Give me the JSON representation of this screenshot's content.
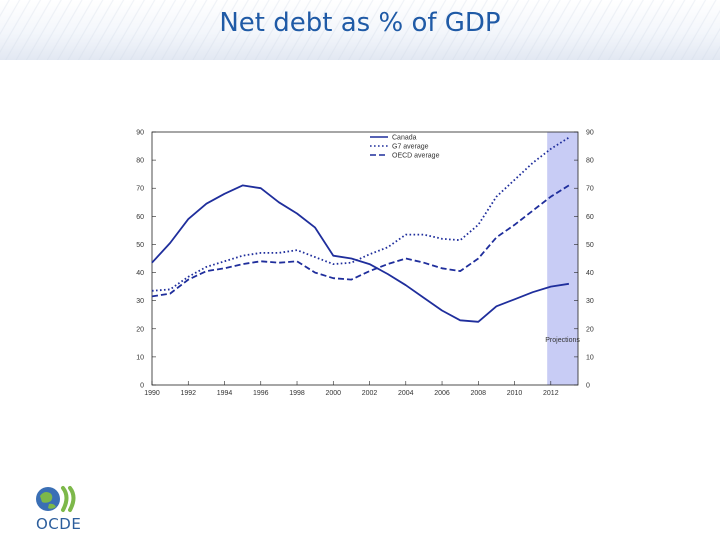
{
  "slide": {
    "title": "Net debt as % of GDP"
  },
  "logo": {
    "text": "OCDE"
  },
  "colors": {
    "line": "#1f2e9c",
    "shade": "#c8ccf5",
    "title": "#1f5aa6"
  },
  "chart_data": {
    "type": "line",
    "title": "Net debt as % of GDP",
    "xlabel": "",
    "ylabel": "",
    "xlim": [
      1990,
      2013.5
    ],
    "ylim": [
      0,
      90
    ],
    "xticks": [
      1990,
      1992,
      1994,
      1996,
      1998,
      2000,
      2002,
      2004,
      2006,
      2008,
      2010,
      2012
    ],
    "yticks": [
      0,
      10,
      20,
      30,
      40,
      50,
      60,
      70,
      80,
      90
    ],
    "projection": {
      "from": 2011.8,
      "to": 2013.5,
      "label": "Projections"
    },
    "legend_position": "top-center",
    "series": [
      {
        "name": "Canada",
        "style": "solid",
        "x": [
          1990,
          1991,
          1992,
          1993,
          1994,
          1995,
          1996,
          1997,
          1998,
          1999,
          2000,
          2001,
          2002,
          2003,
          2004,
          2005,
          2006,
          2007,
          2008,
          2009,
          2010,
          2011,
          2012,
          2013
        ],
        "values": [
          43.5,
          50.5,
          59,
          64.5,
          68,
          71,
          70,
          65,
          61,
          56,
          46,
          45,
          43,
          39.5,
          35.5,
          31,
          26.5,
          23,
          22.5,
          28,
          30.5,
          33,
          35,
          36
        ]
      },
      {
        "name": "G7 average",
        "style": "dotted",
        "x": [
          1990,
          1991,
          1992,
          1993,
          1994,
          1995,
          1996,
          1997,
          1998,
          1999,
          2000,
          2001,
          2002,
          2003,
          2004,
          2005,
          2006,
          2007,
          2008,
          2009,
          2010,
          2011,
          2012,
          2013
        ],
        "values": [
          33.5,
          34,
          38.5,
          42,
          44,
          46,
          47,
          47,
          48,
          45.5,
          43,
          43.5,
          46.5,
          49,
          53.5,
          53.5,
          52,
          51.5,
          57,
          67,
          73,
          79,
          84,
          88
        ]
      },
      {
        "name": "OECD average",
        "style": "dashed",
        "x": [
          1990,
          1991,
          1992,
          1993,
          1994,
          1995,
          1996,
          1997,
          1998,
          1999,
          2000,
          2001,
          2002,
          2003,
          2004,
          2005,
          2006,
          2007,
          2008,
          2009,
          2010,
          2011,
          2012,
          2013
        ],
        "values": [
          31.5,
          32.5,
          37.5,
          40.5,
          41.5,
          43,
          44,
          43.5,
          44,
          40,
          38,
          37.5,
          40.5,
          43,
          45,
          43.5,
          41.5,
          40.5,
          45,
          52.5,
          57,
          62,
          67,
          71
        ]
      }
    ]
  }
}
